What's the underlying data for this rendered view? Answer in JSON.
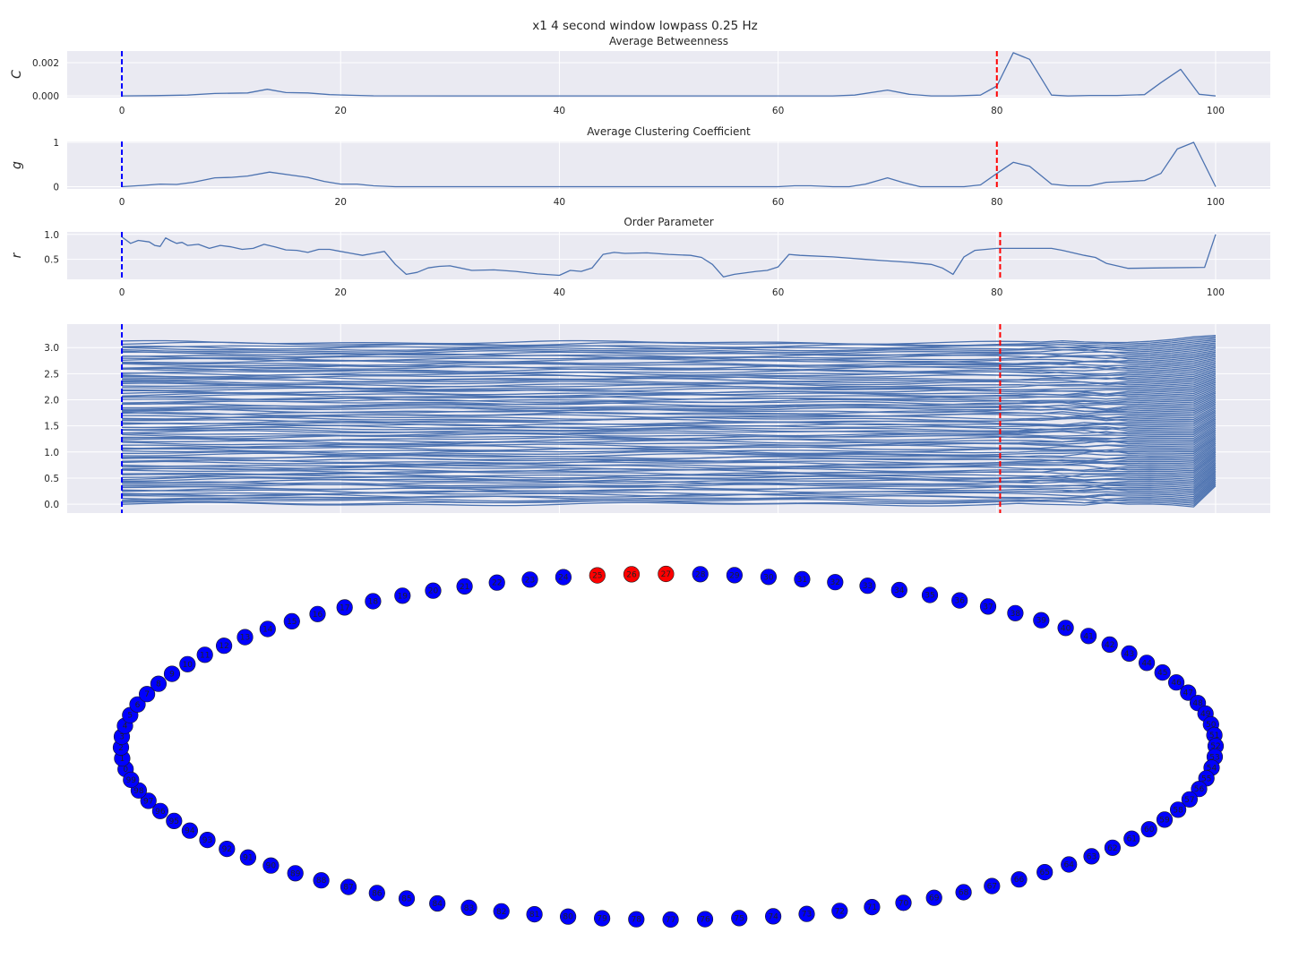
{
  "suptitle": "x1 4 second window lowpass 0.25 Hz",
  "colors": {
    "axes_bg": "#eaeaf2",
    "grid": "#ffffff",
    "line": "#4c72b0",
    "marker_start": "#0000ff",
    "marker_end": "#ff0000",
    "node_default": "#0000ff",
    "node_highlight": "#ff0000"
  },
  "chart_data": [
    {
      "type": "line",
      "title": "Average Betweenness",
      "ylabel": "C",
      "xlim": [
        -5,
        105
      ],
      "ylim": [
        -0.0001,
        0.0027
      ],
      "xticks": [
        "0",
        "20",
        "40",
        "60",
        "80",
        "100"
      ],
      "yticks": [
        "0.000",
        "0.002"
      ],
      "vlines": [
        0,
        80
      ],
      "series": [
        {
          "x": [
            0,
            3,
            6,
            8.5,
            11.5,
            13.3,
            15,
            17,
            19,
            21,
            23,
            30,
            40,
            50,
            60,
            65,
            67,
            70,
            72,
            74,
            76,
            78.5,
            80,
            81.5,
            83,
            85,
            86.5,
            88.5,
            91,
            93.5,
            95,
            96.8,
            98.5,
            100
          ],
          "y": [
            0.0,
            2e-05,
            5e-05,
            0.00015,
            0.00018,
            0.0004,
            0.0002,
            0.00018,
            8e-05,
            4e-05,
            1e-05,
            0.0,
            0.0,
            0.0,
            0.0,
            0.0,
            5e-05,
            0.00035,
            0.0001,
            0.0,
            0.0,
            5e-05,
            0.0006,
            0.0026,
            0.0022,
            5e-05,
            0.0,
            3e-05,
            3e-05,
            8e-05,
            0.0008,
            0.0016,
            0.0001,
            0.0
          ]
        }
      ]
    },
    {
      "type": "line",
      "title": "Average Clustering Coefficient",
      "ylabel": "g",
      "xlim": [
        -5,
        105
      ],
      "ylim": [
        -0.05,
        1.02
      ],
      "xticks": [
        "0",
        "20",
        "40",
        "60",
        "80",
        "100"
      ],
      "yticks": [
        "0",
        "1"
      ],
      "vlines": [
        0,
        80
      ],
      "series": [
        {
          "x": [
            0,
            2,
            3.5,
            5,
            6.5,
            8.5,
            10,
            11.5,
            13.5,
            15.5,
            17,
            18.5,
            20,
            21.5,
            23,
            25,
            30,
            40,
            50,
            60,
            61.5,
            63,
            65,
            66.5,
            68,
            70,
            71.5,
            73,
            75,
            77,
            78.5,
            80,
            81.5,
            83,
            85,
            86.5,
            88.5,
            90,
            92,
            93.5,
            95,
            96.5,
            98,
            100
          ],
          "y": [
            0.0,
            0.03,
            0.06,
            0.05,
            0.1,
            0.2,
            0.21,
            0.24,
            0.33,
            0.26,
            0.21,
            0.12,
            0.06,
            0.06,
            0.02,
            0.0,
            0.0,
            0.0,
            0.0,
            0.0,
            0.02,
            0.02,
            0.0,
            0.0,
            0.06,
            0.2,
            0.09,
            0.0,
            0.0,
            0.0,
            0.04,
            0.3,
            0.55,
            0.46,
            0.06,
            0.02,
            0.02,
            0.1,
            0.12,
            0.14,
            0.3,
            0.85,
            1.0,
            0.0
          ]
        }
      ]
    },
    {
      "type": "line",
      "title": "Order Parameter",
      "ylabel": "r",
      "xlim": [
        -5,
        105
      ],
      "ylim": [
        0.1,
        1.05
      ],
      "xticks": [
        "0",
        "20",
        "40",
        "60",
        "80",
        "100"
      ],
      "yticks": [
        "0.5",
        "1.0"
      ],
      "vlines": [
        0,
        80.3
      ],
      "series": [
        {
          "x": [
            0,
            0.8,
            1.5,
            2.5,
            3,
            3.5,
            4,
            4.5,
            5,
            5.5,
            6,
            7,
            8,
            9,
            10,
            11,
            12,
            13,
            14,
            15,
            16,
            17,
            18,
            19,
            20,
            21,
            22,
            23,
            24,
            25,
            26,
            27,
            28,
            29,
            30,
            32,
            34,
            36,
            38,
            40,
            41,
            42,
            43,
            44,
            45,
            46,
            48,
            50,
            52,
            53,
            54,
            55,
            56,
            58,
            59,
            60,
            61,
            62,
            65,
            68,
            70,
            72,
            74,
            75,
            76,
            77,
            78,
            80,
            85,
            86,
            88,
            89,
            90,
            92,
            95,
            99,
            100
          ],
          "y": [
            0.95,
            0.82,
            0.88,
            0.85,
            0.78,
            0.76,
            0.93,
            0.87,
            0.82,
            0.84,
            0.78,
            0.8,
            0.72,
            0.78,
            0.75,
            0.7,
            0.72,
            0.8,
            0.75,
            0.69,
            0.68,
            0.64,
            0.7,
            0.7,
            0.66,
            0.62,
            0.58,
            0.62,
            0.66,
            0.4,
            0.2,
            0.24,
            0.33,
            0.36,
            0.37,
            0.28,
            0.29,
            0.26,
            0.21,
            0.18,
            0.28,
            0.26,
            0.33,
            0.6,
            0.64,
            0.62,
            0.63,
            0.6,
            0.58,
            0.54,
            0.4,
            0.15,
            0.2,
            0.26,
            0.28,
            0.35,
            0.6,
            0.58,
            0.55,
            0.5,
            0.47,
            0.44,
            0.4,
            0.33,
            0.2,
            0.55,
            0.68,
            0.72,
            0.72,
            0.68,
            0.58,
            0.54,
            0.42,
            0.32,
            0.33,
            0.34,
            1.0
          ]
        }
      ]
    },
    {
      "type": "line",
      "title": "",
      "xlim": [
        -5,
        105
      ],
      "ylim": [
        -0.17,
        3.45
      ],
      "yticks": [
        "0.0",
        "0.5",
        "1.0",
        "1.5",
        "2.0",
        "2.5",
        "3.0"
      ],
      "vlines": [
        0,
        80.3
      ],
      "series_count": 100,
      "value_range": [
        0.0,
        3.1
      ]
    },
    {
      "type": "network",
      "title": "",
      "node_count": 100,
      "highlighted_nodes": [
        25,
        26,
        27
      ]
    }
  ]
}
